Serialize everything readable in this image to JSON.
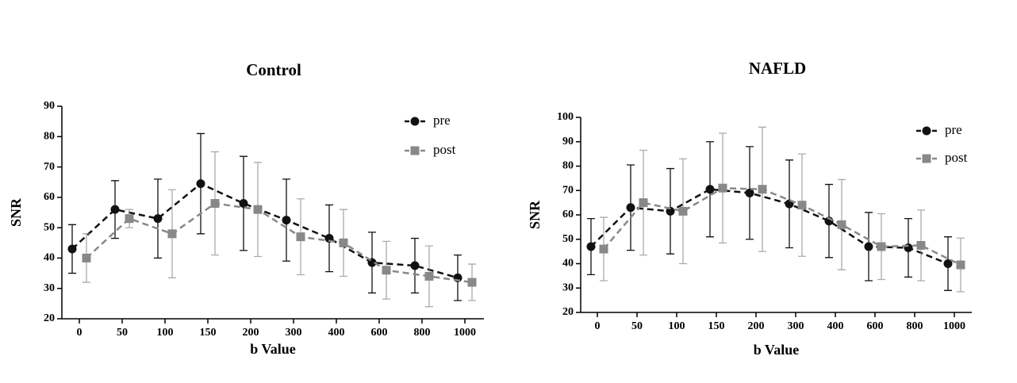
{
  "chart_data": [
    {
      "type": "line",
      "title": "Control",
      "x_label": "b Value",
      "y_label": "SNR",
      "categories": [
        "0",
        "50",
        "100",
        "150",
        "200",
        "300",
        "400",
        "600",
        "800",
        "1000"
      ],
      "ylim": [
        20,
        90
      ],
      "yticks": [
        20,
        30,
        40,
        50,
        60,
        70,
        80,
        90
      ],
      "legend": "upper right",
      "series": [
        {
          "name": "pre",
          "color": "#111111",
          "marker": "circle",
          "values": [
            43,
            56,
            53,
            64.5,
            58,
            52.5,
            46.5,
            38.5,
            37.5,
            33.5
          ],
          "errors": [
            8,
            9.5,
            13,
            16.5,
            15.5,
            13.5,
            11,
            10,
            9,
            7.5
          ]
        },
        {
          "name": "post",
          "color": "#888888",
          "marker": "square",
          "values": [
            40,
            53,
            48,
            58,
            56,
            47,
            45,
            36,
            34,
            32
          ],
          "errors": [
            8,
            3,
            14.5,
            17,
            15.5,
            12.5,
            11,
            9.5,
            10,
            6
          ]
        }
      ]
    },
    {
      "type": "line",
      "title": "NAFLD",
      "x_label": "b Value",
      "y_label": "SNR",
      "categories": [
        "0",
        "50",
        "100",
        "150",
        "200",
        "300",
        "400",
        "600",
        "800",
        "1000"
      ],
      "ylim": [
        20,
        100
      ],
      "yticks": [
        20,
        30,
        40,
        50,
        60,
        70,
        80,
        90,
        100
      ],
      "legend": "upper right",
      "series": [
        {
          "name": "pre",
          "color": "#111111",
          "marker": "circle",
          "values": [
            47,
            63,
            61.5,
            70.5,
            69,
            64.5,
            57.5,
            47,
            46.5,
            40
          ],
          "errors": [
            11.5,
            17.5,
            17.5,
            19.5,
            19,
            18,
            15,
            14,
            12,
            11
          ]
        },
        {
          "name": "post",
          "color": "#888888",
          "marker": "square",
          "values": [
            46,
            65,
            61.5,
            71,
            70.5,
            64,
            56,
            47,
            47.5,
            39.5
          ],
          "errors": [
            13,
            21.5,
            21.5,
            22.5,
            25.5,
            21,
            18.5,
            13.5,
            14.5,
            11
          ]
        }
      ]
    }
  ]
}
